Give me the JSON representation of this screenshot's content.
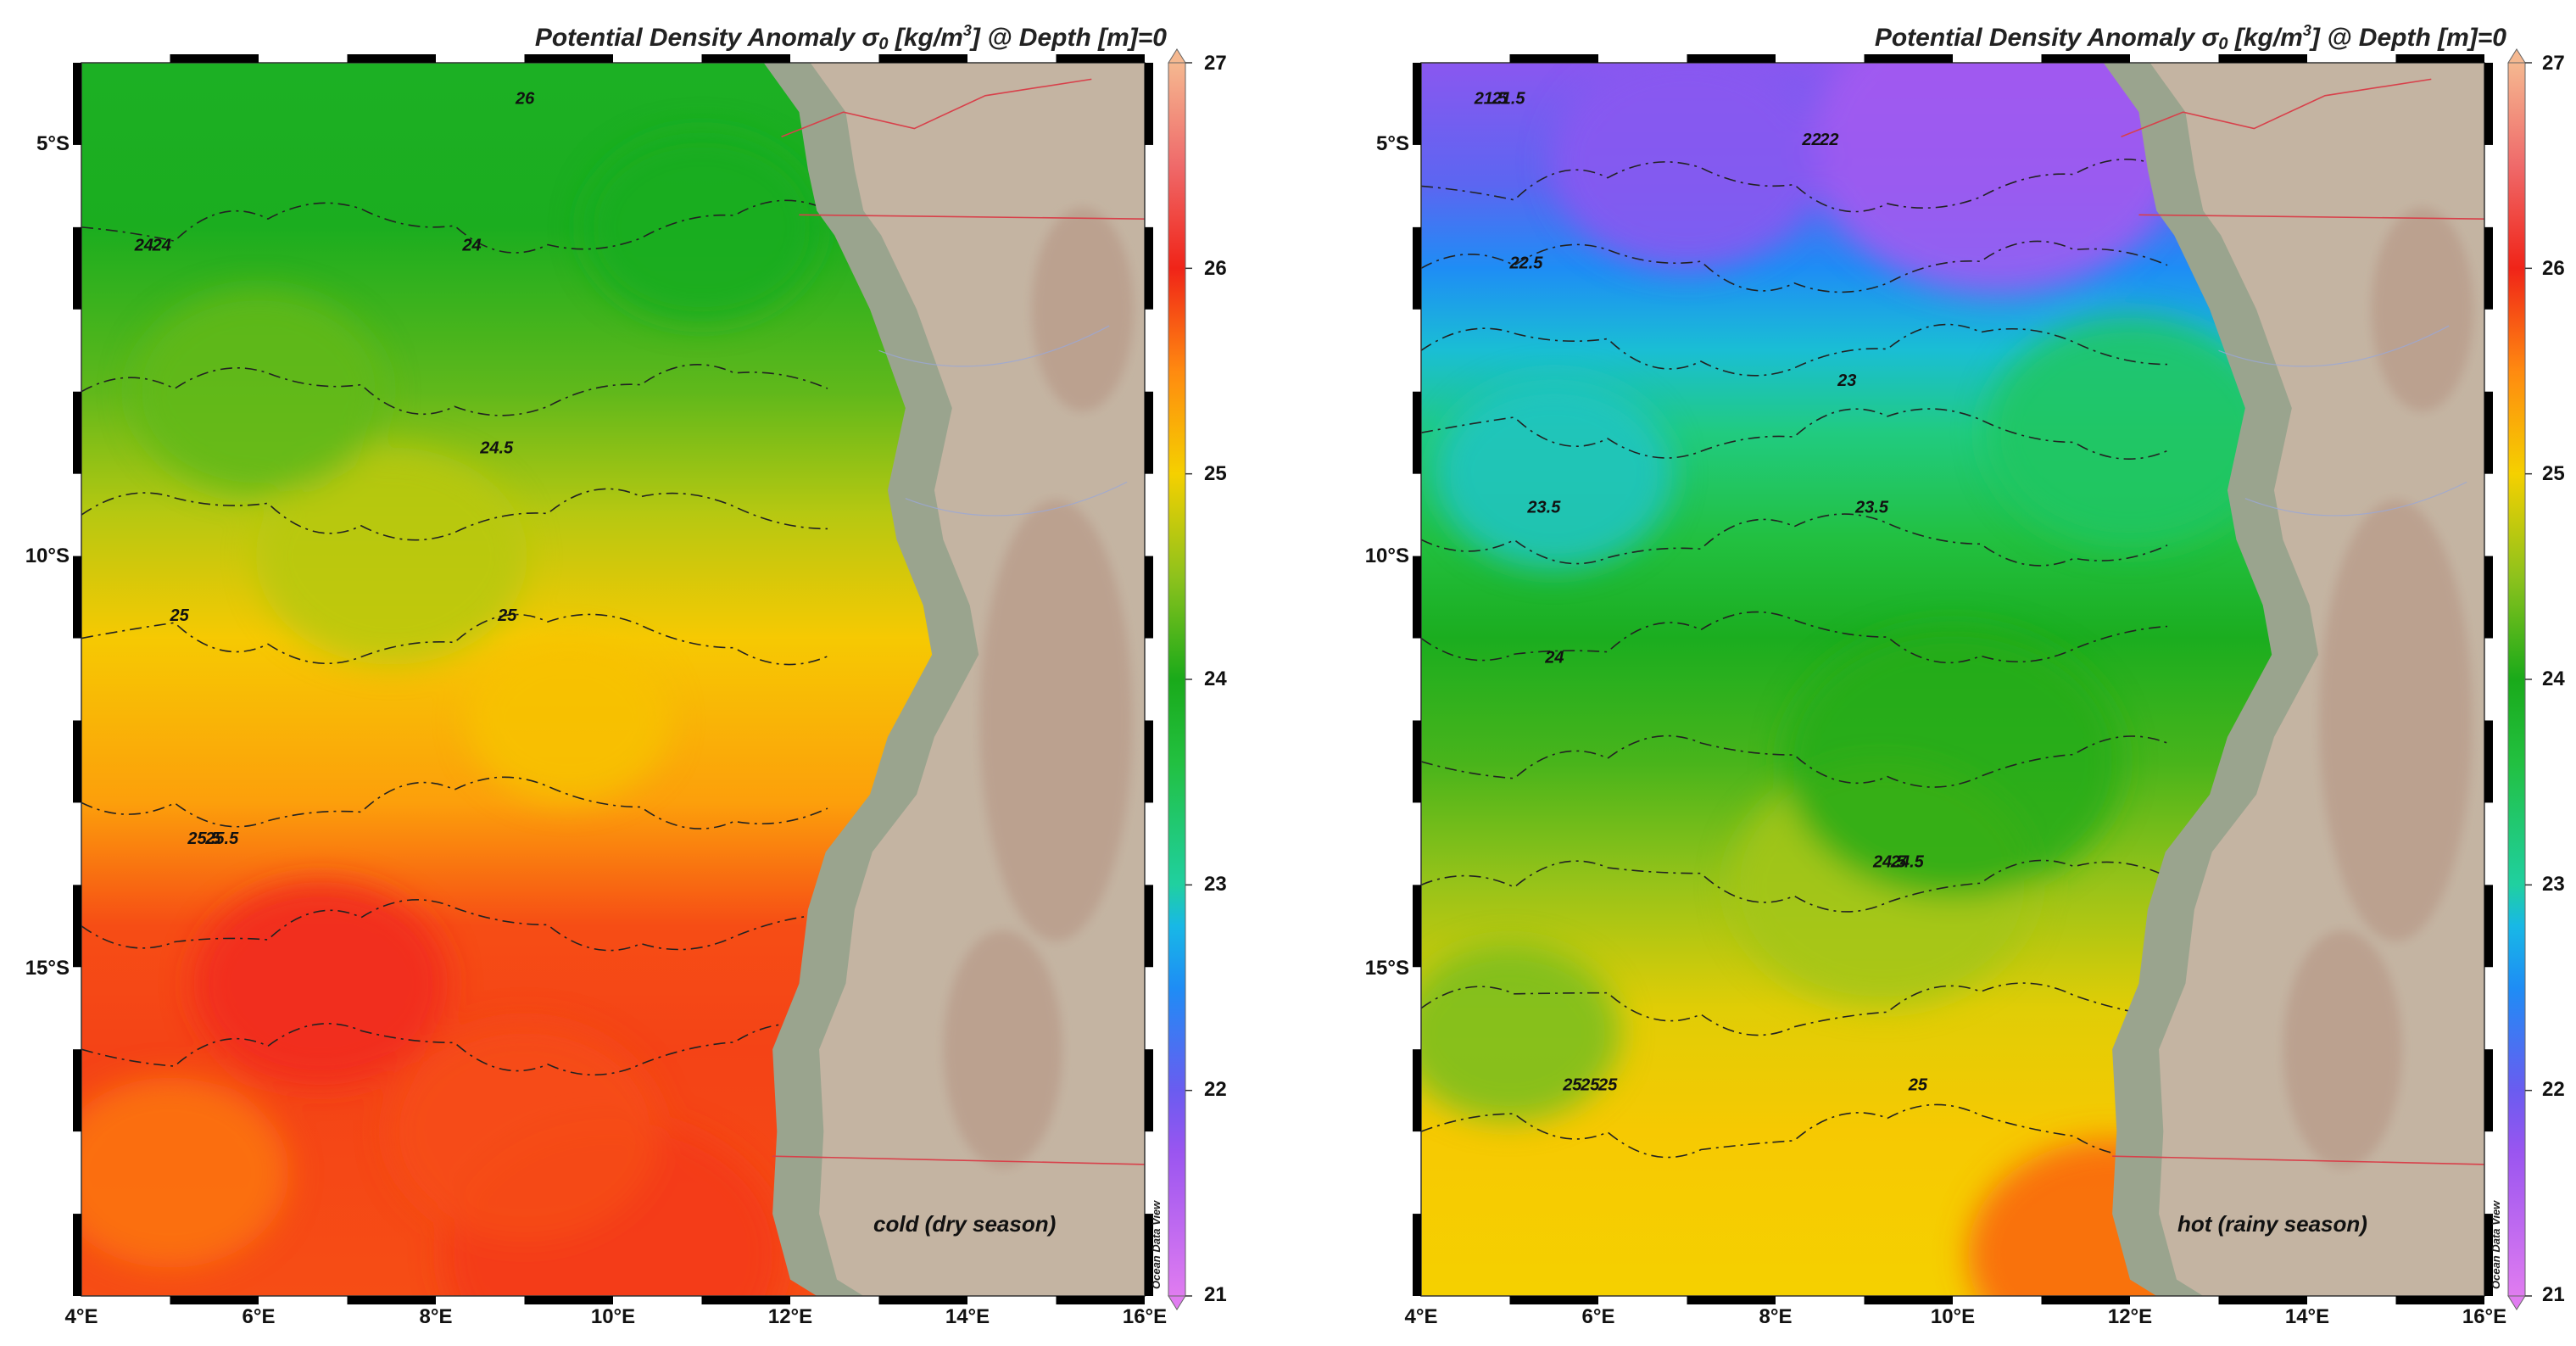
{
  "panels": [
    {
      "title_main": "Potential Density Anomaly σ",
      "title_sub": "0",
      "title_unit_pre": " [kg/m",
      "title_unit_sup": "3",
      "title_post": "] @ Depth [m]=0",
      "season_label": "cold (dry season)",
      "credit": "Ocean Data View",
      "contour_labels": [
        {
          "text": "24",
          "value": 24
        },
        {
          "text": "24",
          "value": 24
        },
        {
          "text": "24",
          "value": 24
        },
        {
          "text": "24.5",
          "value": 24.5
        },
        {
          "text": "25",
          "value": 25
        },
        {
          "text": "25",
          "value": 25
        },
        {
          "text": "25.5",
          "value": 25.5
        },
        {
          "text": "26",
          "value": 26
        },
        {
          "text": "25.5",
          "value": 25.5
        }
      ]
    },
    {
      "title_main": "Potential Density Anomaly σ",
      "title_sub": "0",
      "title_unit_pre": " [kg/m",
      "title_unit_sup": "3",
      "title_post": "] @ Depth [m]=0",
      "season_label": "hot (rainy season)",
      "credit": "Ocean Data View",
      "contour_labels": [
        {
          "text": "21.5",
          "value": 21.5
        },
        {
          "text": "22",
          "value": 22
        },
        {
          "text": "21.5",
          "value": 21.5
        },
        {
          "text": "22",
          "value": 22
        },
        {
          "text": "22.5",
          "value": 22.5
        },
        {
          "text": "23",
          "value": 23
        },
        {
          "text": "23.5",
          "value": 23.5
        },
        {
          "text": "23.5",
          "value": 23.5
        },
        {
          "text": "24",
          "value": 24
        },
        {
          "text": "24.5",
          "value": 24.5
        },
        {
          "text": "25",
          "value": 25
        },
        {
          "text": "24.5",
          "value": 24.5
        },
        {
          "text": "25",
          "value": 25
        },
        {
          "text": "25",
          "value": 25
        },
        {
          "text": "25",
          "value": 25
        }
      ]
    }
  ],
  "axes": {
    "lon_ticks": [
      "4°E",
      "6°E",
      "8°E",
      "10°E",
      "12°E",
      "14°E",
      "16°E"
    ],
    "lat_ticks": [
      "5°S",
      "10°S",
      "15°S"
    ],
    "lon_range": [
      4,
      16
    ],
    "lat_range": [
      -19,
      -4
    ]
  },
  "colorbar": {
    "ticks": [
      "27",
      "26",
      "25",
      "24",
      "23",
      "22",
      "21"
    ],
    "range": [
      21,
      27
    ],
    "stops": [
      {
        "v": 21,
        "color": "#e07cf0"
      },
      {
        "v": 21.7,
        "color": "#9a55f0"
      },
      {
        "v": 22,
        "color": "#6a5cf0"
      },
      {
        "v": 22.5,
        "color": "#1e8df5"
      },
      {
        "v": 22.8,
        "color": "#18b8e6"
      },
      {
        "v": 23,
        "color": "#20d0a0"
      },
      {
        "v": 23.6,
        "color": "#22c040"
      },
      {
        "v": 24,
        "color": "#1aaa1a"
      },
      {
        "v": 24.5,
        "color": "#8ec21c"
      },
      {
        "v": 25,
        "color": "#f5d000"
      },
      {
        "v": 25.5,
        "color": "#ff8a10"
      },
      {
        "v": 26,
        "color": "#f02418"
      },
      {
        "v": 26.5,
        "color": "#ef6a6a"
      },
      {
        "v": 27,
        "color": "#f5b890"
      }
    ]
  },
  "colors": {
    "land": "#c4b4a2",
    "coast_shadow": "#9aa48e",
    "land_relief": "#b89a88",
    "border": "#d8404a",
    "rivers": "#9aa8d8"
  }
}
